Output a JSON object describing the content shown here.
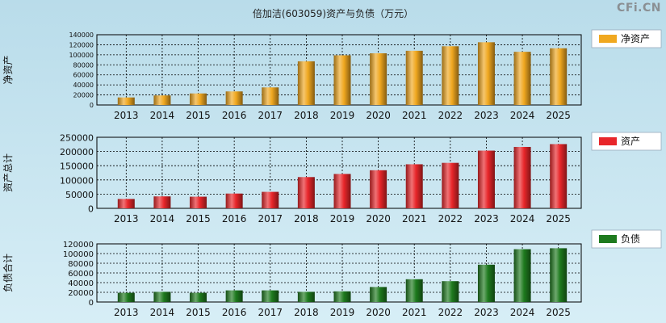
{
  "title": "倍加洁(603059)资产与负债（万元）",
  "brand": "CFi.CN",
  "colors": {
    "net_assets": "#f0a820",
    "assets": "#e8262a",
    "liabilities": "#1e7a1e"
  },
  "chart_data": [
    {
      "type": "bar",
      "ylabel": "净资产",
      "legend": "净资产",
      "legend_placement": "right",
      "grid": true,
      "ylim": [
        0,
        140000
      ],
      "yticks": [
        0,
        20000,
        40000,
        60000,
        80000,
        100000,
        120000,
        140000
      ],
      "categories": [
        "2013",
        "2014",
        "2015",
        "2016",
        "2017",
        "2018",
        "2019",
        "2020",
        "2021",
        "2022",
        "2023",
        "2024",
        "2025"
      ],
      "values": [
        15000,
        19000,
        23000,
        27000,
        35000,
        87000,
        99000,
        103000,
        108000,
        117000,
        125000,
        106000,
        113000
      ]
    },
    {
      "type": "bar",
      "ylabel": "资产总计",
      "legend": "资产",
      "legend_placement": "right",
      "grid": true,
      "ylim": [
        0,
        250000
      ],
      "yticks": [
        0,
        50000,
        100000,
        150000,
        200000,
        250000
      ],
      "categories": [
        "2013",
        "2014",
        "2015",
        "2016",
        "2017",
        "2018",
        "2019",
        "2020",
        "2021",
        "2022",
        "2023",
        "2024",
        "2025"
      ],
      "values": [
        33000,
        42000,
        41000,
        52000,
        58000,
        110000,
        121000,
        134000,
        155000,
        160000,
        203000,
        216000,
        226000
      ]
    },
    {
      "type": "bar",
      "ylabel": "负债合计",
      "legend": "负债",
      "legend_placement": "right",
      "grid": true,
      "ylim": [
        0,
        120000
      ],
      "yticks": [
        0,
        20000,
        40000,
        60000,
        80000,
        100000,
        120000
      ],
      "categories": [
        "2013",
        "2014",
        "2015",
        "2016",
        "2017",
        "2018",
        "2019",
        "2020",
        "2021",
        "2022",
        "2023",
        "2024",
        "2025"
      ],
      "values": [
        19000,
        21000,
        19000,
        24000,
        24000,
        21000,
        22000,
        31000,
        47000,
        43000,
        77000,
        109000,
        111000
      ]
    }
  ]
}
